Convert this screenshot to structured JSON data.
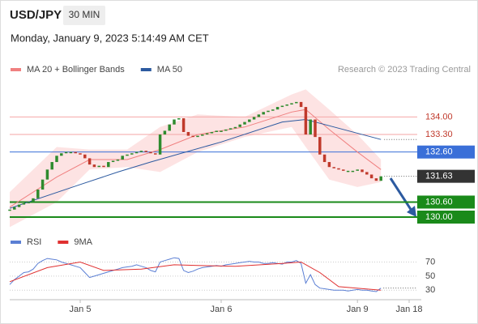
{
  "header": {
    "symbol": "USD/JPY",
    "timeframe": "30 MIN",
    "datetime": "Monday, January 9, 2023 5:14:49 AM CET"
  },
  "chart_data": [
    {
      "type": "candlestick",
      "credit": "Research © 2023 Trading Central",
      "up_color": "#2e8b2e",
      "down_color": "#c0392b",
      "values": [
        130.3,
        130.4,
        130.5,
        130.55,
        130.6,
        130.75,
        131.1,
        131.5,
        131.9,
        132.2,
        132.45,
        132.55,
        132.6,
        132.6,
        132.55,
        132.5,
        132.35,
        132.1,
        132.0,
        132.05,
        132.0,
        132.2,
        132.25,
        132.3,
        132.45,
        132.5,
        132.55,
        132.6,
        132.65,
        132.6,
        132.55,
        132.5,
        133.3,
        133.45,
        133.7,
        133.9,
        133.95,
        133.4,
        133.25,
        133.2,
        133.25,
        133.3,
        133.35,
        133.4,
        133.45,
        133.45,
        133.5,
        133.55,
        133.6,
        133.7,
        133.8,
        133.9,
        134.0,
        134.1,
        134.2,
        134.25,
        134.3,
        134.4,
        134.45,
        134.5,
        134.55,
        134.6,
        134.4,
        133.3,
        133.9,
        133.2,
        132.5,
        132.2,
        132.0,
        131.95,
        131.9,
        131.85,
        131.85,
        131.85,
        131.9,
        131.8,
        131.7,
        131.55,
        131.45,
        131.63
      ],
      "series": [
        {
          "name": "MA 20 + Bollinger Bands",
          "color": "#f08080",
          "x": [
            0,
            10,
            17,
            25,
            32,
            40,
            50,
            60,
            63,
            68,
            74,
            79
          ],
          "values": [
            130.4,
            131.6,
            132.3,
            132.3,
            132.7,
            133.3,
            133.6,
            134.2,
            134.3,
            133.5,
            132.6,
            131.9
          ],
          "upper": [
            131.0,
            132.8,
            132.7,
            132.7,
            133.6,
            134.1,
            134.0,
            134.9,
            135.1,
            134.3,
            133.3,
            132.3
          ],
          "lower": [
            129.6,
            130.6,
            131.9,
            132.0,
            131.8,
            132.6,
            133.2,
            133.6,
            132.8,
            131.5,
            131.2,
            131.4
          ]
        },
        {
          "name": "MA 50",
          "color": "#2c5aa0",
          "x": [
            0,
            15,
            23,
            30,
            45,
            58,
            63,
            70,
            79
          ],
          "values": [
            130.35,
            131.3,
            131.8,
            132.2,
            133.0,
            133.8,
            133.9,
            133.55,
            133.1
          ]
        }
      ],
      "levels": [
        {
          "value": 134,
          "label": "134.00",
          "color": "#f4a6a6",
          "badge": false
        },
        {
          "value": 133.3,
          "label": "133.30",
          "color": "#f4a6a6",
          "badge": false
        },
        {
          "value": 132.6,
          "label": "132.60",
          "color": "#3a6fd8",
          "badge": true
        },
        {
          "value": 130.6,
          "label": "130.60",
          "color": "#1a8a1a",
          "badge": true
        },
        {
          "value": 130,
          "label": "130.00",
          "color": "#1a8a1a",
          "badge": true
        }
      ],
      "current_color": "#333333",
      "xlim": [
        0,
        88
      ],
      "ylim": [
        129.45,
        135.6
      ],
      "xticks": [
        {
          "value": 15,
          "label": "Jan 5"
        },
        {
          "value": 45,
          "label": "Jan 6"
        },
        {
          "value": 74,
          "label": "Jan 9"
        },
        {
          "value": 85,
          "label": "Jan 18"
        }
      ]
    },
    {
      "type": "line",
      "series": [
        {
          "name": "RSI",
          "color": "#5b7fd4",
          "values": [
            38,
            45,
            50,
            55,
            56,
            60,
            68,
            72,
            75,
            74,
            73,
            70,
            68,
            66,
            64,
            62,
            55,
            48,
            50,
            52,
            54,
            56,
            58,
            60,
            62,
            63,
            64,
            66,
            64,
            62,
            58,
            56,
            70,
            72,
            74,
            76,
            75,
            58,
            55,
            57,
            60,
            62,
            63,
            64,
            65,
            64,
            66,
            67,
            68,
            69,
            70,
            71,
            70,
            70,
            68,
            68,
            69,
            68,
            67,
            70,
            70,
            72,
            68,
            40,
            52,
            38,
            33,
            32,
            31,
            30,
            30,
            30,
            29,
            30,
            31,
            30,
            30,
            29,
            28,
            33
          ]
        },
        {
          "name": "9MA",
          "color": "#e03030",
          "x": [
            0,
            8,
            15,
            20,
            28,
            35,
            40,
            48,
            58,
            62,
            66,
            70,
            79
          ],
          "values": [
            42,
            62,
            70,
            58,
            60,
            66,
            65,
            64,
            68,
            70,
            55,
            35,
            30
          ]
        }
      ],
      "xlim": [
        0,
        88
      ],
      "ylim": [
        20,
        82
      ],
      "yticks": [
        70,
        50,
        30
      ]
    }
  ]
}
